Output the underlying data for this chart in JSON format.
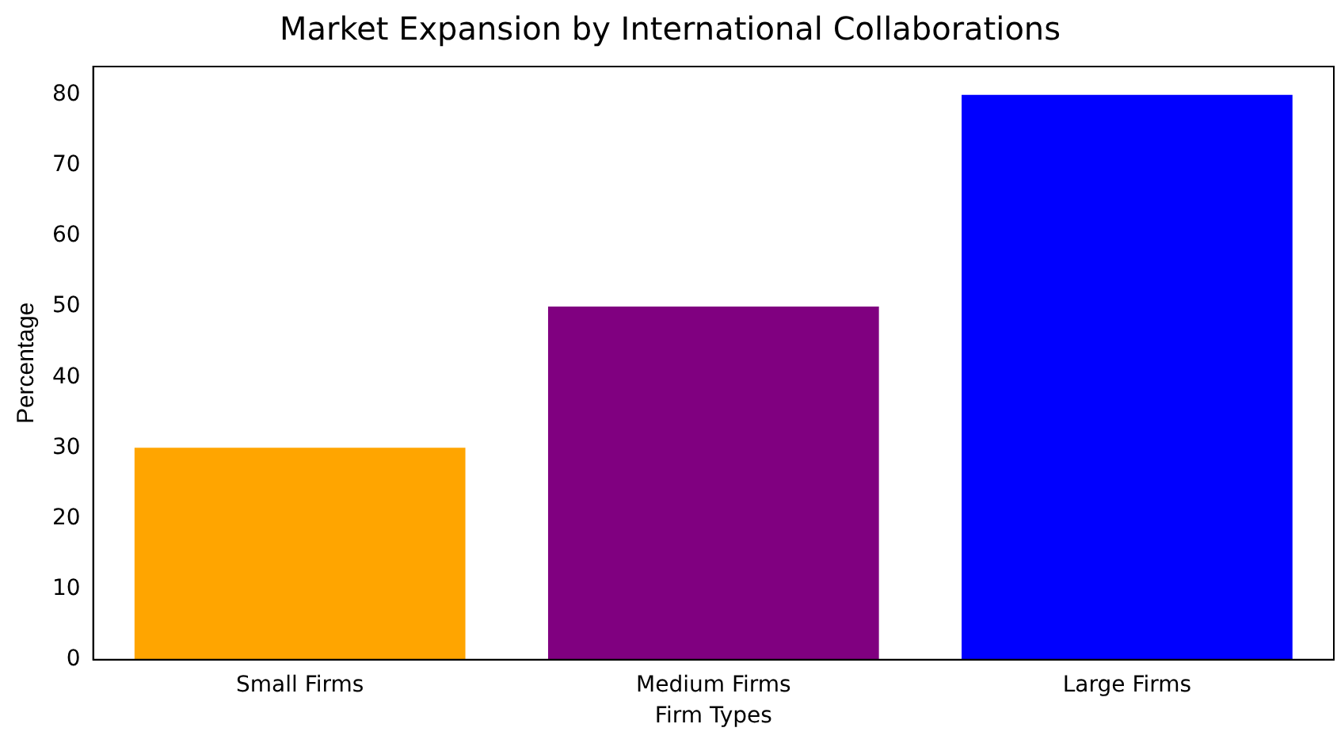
{
  "chart_data": {
    "type": "bar",
    "title": "Market Expansion by International Collaborations",
    "xlabel": "Firm Types",
    "ylabel": "Percentage",
    "categories": [
      "Small Firms",
      "Medium Firms",
      "Large Firms"
    ],
    "values": [
      30,
      50,
      80
    ],
    "colors": [
      "#ffa500",
      "#800080",
      "#0000ff"
    ],
    "ylim": [
      0,
      84
    ],
    "yticks": [
      0,
      10,
      20,
      30,
      40,
      50,
      60,
      70,
      80
    ],
    "grid": false
  }
}
